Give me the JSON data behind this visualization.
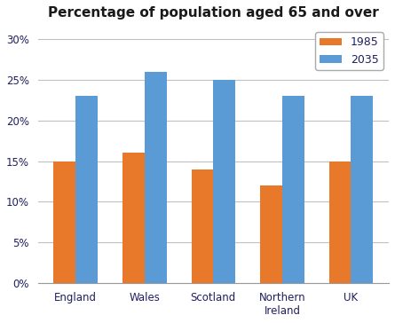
{
  "title": "Percentage of population aged 65 and over",
  "categories": [
    "England",
    "Wales",
    "Scotland",
    "Northern\nIreland",
    "UK"
  ],
  "series": {
    "1985": [
      0.15,
      0.16,
      0.14,
      0.12,
      0.15
    ],
    "2035": [
      0.23,
      0.26,
      0.25,
      0.23,
      0.23
    ]
  },
  "bar_colors": {
    "1985": "#E8782A",
    "2035": "#5B9BD5"
  },
  "legend_labels": [
    "1985",
    "2035"
  ],
  "ylim": [
    0,
    0.315
  ],
  "yticks": [
    0,
    0.05,
    0.1,
    0.15,
    0.2,
    0.25,
    0.3
  ],
  "ytick_labels": [
    "0%",
    "5%",
    "10%",
    "15%",
    "20%",
    "25%",
    "30%"
  ],
  "title_fontsize": 11,
  "legend_fontsize": 9,
  "tick_fontsize": 8.5,
  "bar_width": 0.32,
  "background_color": "#FFFFFF",
  "grid_color": "#C0C0C0",
  "text_color": "#1F1F5F"
}
